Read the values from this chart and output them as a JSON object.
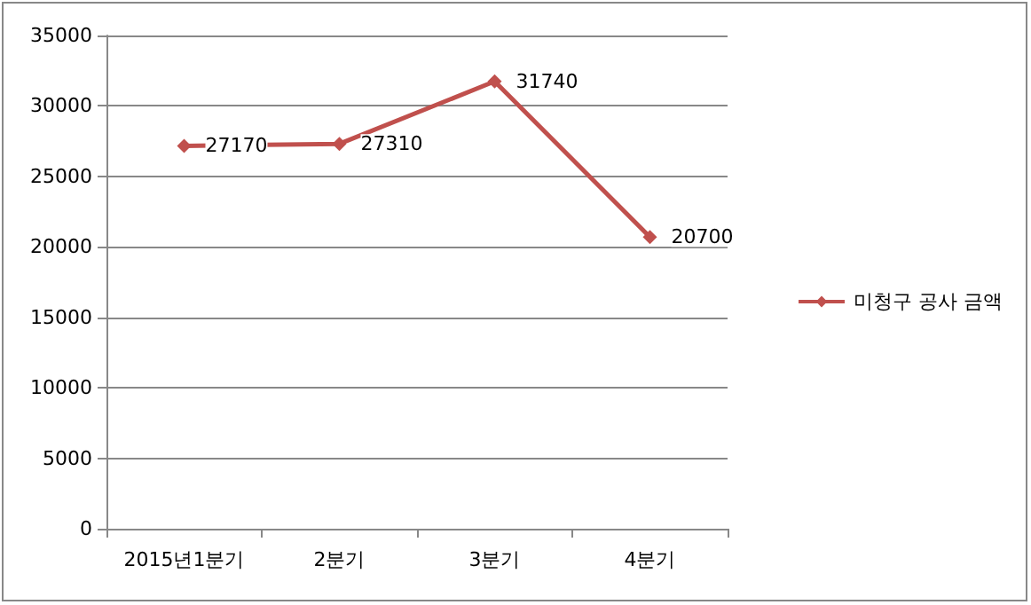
{
  "chart_data": {
    "type": "line",
    "categories": [
      "2015년1분기",
      "2분기",
      "3분기",
      "4분기"
    ],
    "series": [
      {
        "name": "미청구 공사 금액",
        "color": "#c0504d",
        "values": [
          27170,
          27310,
          31740,
          20700
        ]
      }
    ],
    "ylim": [
      0,
      35000
    ],
    "yticks": [
      0,
      5000,
      10000,
      15000,
      20000,
      25000,
      30000,
      35000
    ],
    "grid": "y",
    "legend": "right",
    "marker": "diamond",
    "line_style": "solid",
    "data_labels": true
  }
}
